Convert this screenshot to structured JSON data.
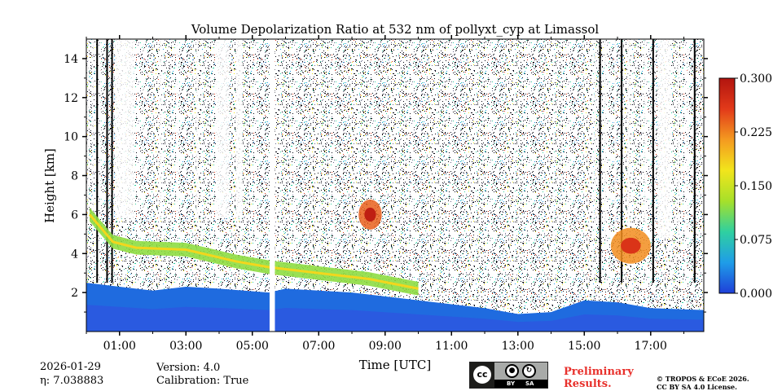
{
  "chart_data": {
    "type": "heatmap",
    "title": "Volume Depolarization Ratio at 532 nm of pollyxt_cyp at Limassol",
    "xlabel": "Time [UTC]",
    "ylabel": "Height [km]",
    "xlim_hours": [
      0,
      18.6
    ],
    "ylim": [
      0,
      15
    ],
    "x_ticks": [
      "01:00",
      "03:00",
      "05:00",
      "07:00",
      "09:00",
      "11:00",
      "13:00",
      "15:00",
      "17:00"
    ],
    "x_tick_hours": [
      1,
      3,
      5,
      7,
      9,
      11,
      13,
      15,
      17
    ],
    "y_ticks": [
      2,
      4,
      6,
      8,
      10,
      12,
      14
    ],
    "colorbar": {
      "min": 0.0,
      "max": 0.3,
      "ticks": [
        "0.000",
        "0.075",
        "0.150",
        "0.225",
        "0.300"
      ],
      "tick_values": [
        0,
        0.075,
        0.15,
        0.225,
        0.3
      ],
      "colors": [
        "#1f3fd8",
        "#1f9de8",
        "#2fd0a0",
        "#a6e02a",
        "#f2e51c",
        "#f49a20",
        "#e23a1a",
        "#b2140f"
      ]
    },
    "data_gap_hours": [
      5.52,
      5.68
    ],
    "features": [
      {
        "name": "boundary layer",
        "value": 0.02,
        "top_km": 2.2
      },
      {
        "name": "elevated aerosol layer",
        "value": 0.12,
        "height_km": 4.0,
        "hours": [
          1.5,
          10.0
        ]
      },
      {
        "name": "dust plume",
        "value": 0.24,
        "height_km": 6.0,
        "hours": [
          8.2,
          8.9
        ]
      },
      {
        "name": "dust plume late",
        "value": 0.22,
        "height_km": 4.4,
        "hours": [
          15.8,
          17.0
        ]
      }
    ]
  },
  "footer": {
    "date": "2026-01-29",
    "eta": "η: 7.038883",
    "version": "Version: 4.0",
    "calibration": "Calibration: True",
    "license_badge": {
      "cc": "cc",
      "by": "BY",
      "sa": "SA"
    },
    "preliminary_line1": "Preliminary",
    "preliminary_line2": "Results.",
    "copyright_line1": "© TROPOS & ECoE 2026.",
    "copyright_line2": "CC BY SA 4.0 License."
  }
}
